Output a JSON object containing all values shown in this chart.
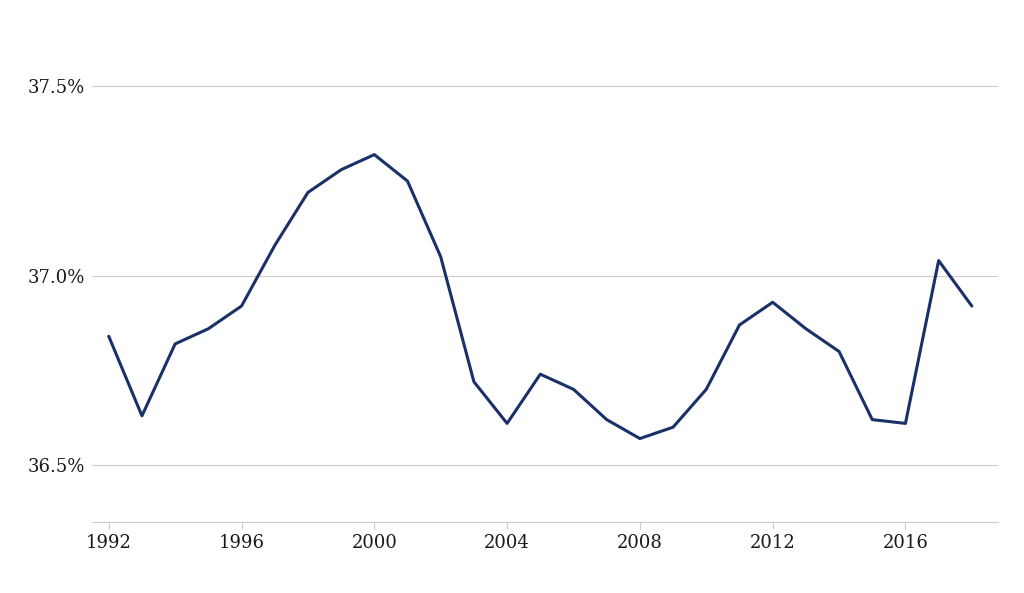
{
  "years": [
    1992,
    1993,
    1994,
    1995,
    1996,
    1997,
    1998,
    1999,
    2000,
    2001,
    2002,
    2003,
    2004,
    2005,
    2006,
    2007,
    2008,
    2009,
    2010,
    2011,
    2012,
    2013,
    2014,
    2015,
    2016,
    2017,
    2018
  ],
  "values": [
    36.84,
    36.63,
    36.82,
    36.86,
    36.92,
    37.08,
    37.22,
    37.28,
    37.32,
    37.25,
    37.05,
    36.72,
    36.61,
    36.74,
    36.7,
    36.62,
    36.57,
    36.6,
    36.7,
    36.87,
    36.93,
    36.86,
    36.8,
    36.62,
    36.61,
    37.04,
    36.92
  ],
  "line_color": "#1a3068",
  "line_width": 2.2,
  "yticks": [
    36.5,
    37.0,
    37.5
  ],
  "ylim": [
    36.35,
    37.65
  ],
  "xticks": [
    1992,
    1996,
    2000,
    2004,
    2008,
    2012,
    2016
  ],
  "xlim": [
    1991.5,
    2018.8
  ],
  "bg_color": "#ffffff",
  "grid_color": "#cccccc",
  "tick_color": "#333333",
  "font_color": "#1a1a1a"
}
